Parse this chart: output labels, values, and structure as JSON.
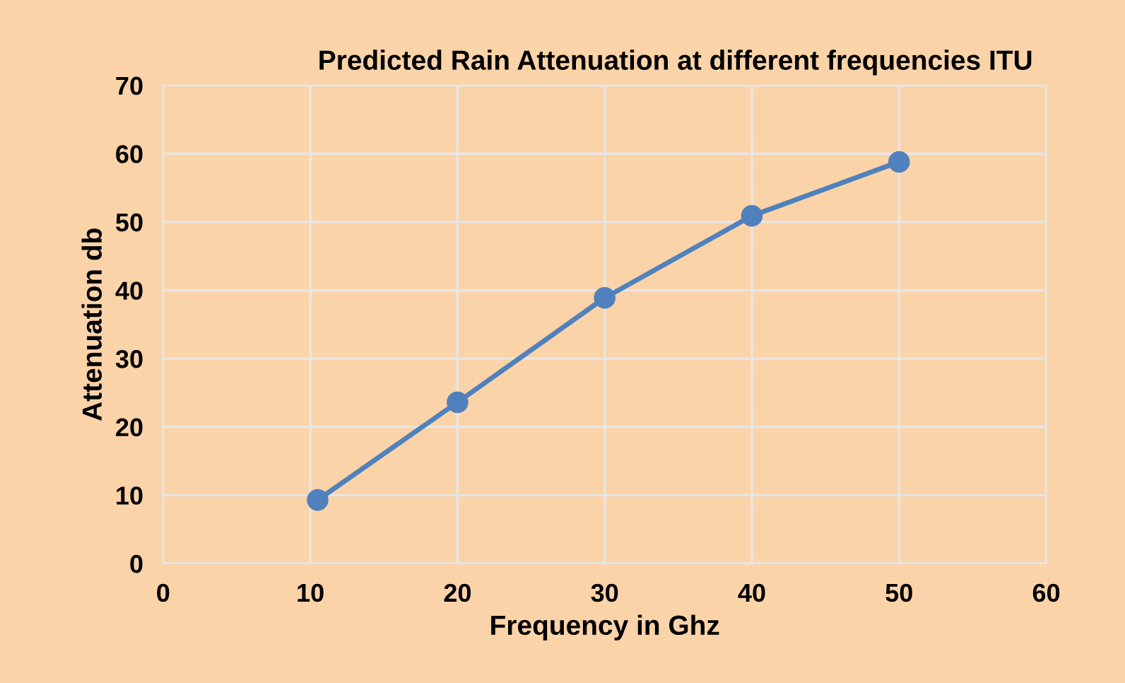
{
  "chart_data": {
    "type": "line",
    "title": "Predicted Rain Attenuation at different frequencies ITU",
    "xlabel": "Frequency in Ghz",
    "ylabel": "Attenuation db",
    "x": [
      10.5,
      20,
      30,
      40,
      50
    ],
    "series": [
      {
        "color": "#4f81bd",
        "values": [
          9.3,
          23.6,
          38.9,
          50.9,
          58.8
        ]
      }
    ],
    "xlim": [
      0,
      60
    ],
    "xticks": [
      0,
      10,
      20,
      30,
      40,
      50,
      60
    ],
    "ylim": [
      0,
      70
    ],
    "yticks": [
      0,
      10,
      20,
      30,
      40,
      50,
      60,
      70
    ],
    "grid": true,
    "marker": "circle",
    "line_style": "solid"
  }
}
